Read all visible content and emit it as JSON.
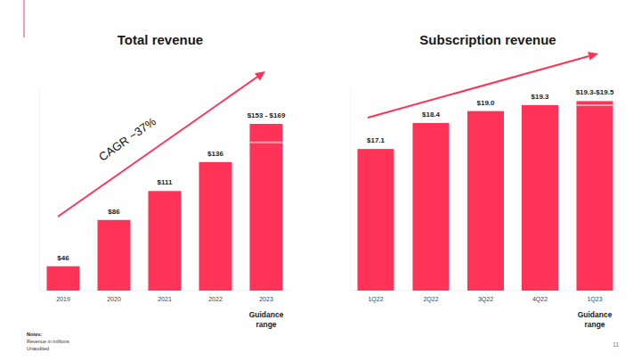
{
  "chart_data": [
    {
      "type": "bar",
      "title": "Total revenue",
      "categories": [
        "2019",
        "2020",
        "2021",
        "2022",
        "2023"
      ],
      "values": [
        46,
        86,
        111,
        136,
        169
      ],
      "value_labels": [
        "$46",
        "$86",
        "$111",
        "$136",
        "$153 - $169"
      ],
      "guidance_low": [
        null,
        null,
        null,
        null,
        153
      ],
      "color": "#ff3358",
      "ylim": [
        25,
        199
      ],
      "yticks": [],
      "tick_labels": "x",
      "data_labels": true,
      "grid": false,
      "trend_label": "CAGR ~37%",
      "range_note": "Guidance range"
    },
    {
      "type": "bar",
      "title": "Subscription revenue",
      "categories": [
        "1Q22",
        "2Q22",
        "3Q22",
        "4Q22",
        "1Q23"
      ],
      "values": [
        17.1,
        18.4,
        19.0,
        19.3,
        19.5
      ],
      "value_labels": [
        "$17.1",
        "$18.4",
        "$19.0",
        "$19.3",
        "$19.3-$19.5"
      ],
      "guidance_low": [
        null,
        null,
        null,
        null,
        19.3
      ],
      "color": "#ff3358",
      "ylim": [
        10,
        20.1
      ],
      "yticks": [],
      "tick_labels": "x",
      "data_labels": true,
      "grid": false,
      "range_note": "Guidance range"
    }
  ],
  "notes": {
    "title": "Notes:",
    "lines": [
      "Revenue in millions",
      "Unaudited"
    ]
  },
  "page_number": "11"
}
